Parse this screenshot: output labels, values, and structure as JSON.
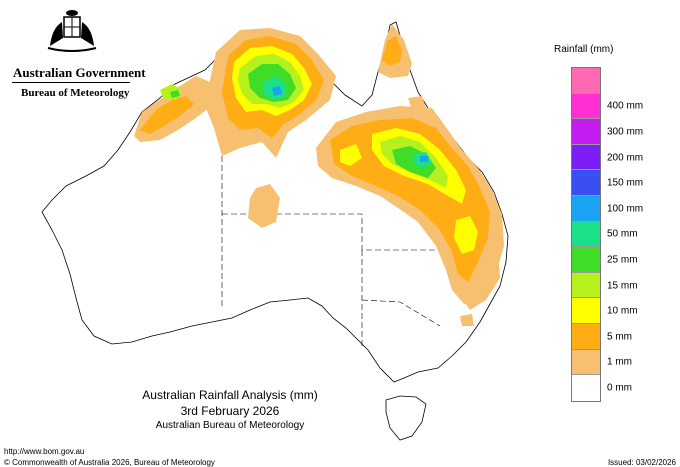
{
  "header": {
    "government": "Australian Government",
    "bureau": "Bureau of Meteorology"
  },
  "legend": {
    "title": "Rainfall (mm)",
    "items": [
      {
        "label": "",
        "color": "#ff69b4"
      },
      {
        "label": "400 mm",
        "color": "#ff2fd4"
      },
      {
        "label": "300 mm",
        "color": "#c21cf0"
      },
      {
        "label": "200 mm",
        "color": "#7b1ff6"
      },
      {
        "label": "150 mm",
        "color": "#3a4ff2"
      },
      {
        "label": "100 mm",
        "color": "#1aa3f2"
      },
      {
        "label": "50 mm",
        "color": "#1ae08a"
      },
      {
        "label": "25 mm",
        "color": "#3fdc28"
      },
      {
        "label": "15 mm",
        "color": "#b6f01d"
      },
      {
        "label": "10 mm",
        "color": "#ffff00"
      },
      {
        "label": "5 mm",
        "color": "#ffad14"
      },
      {
        "label": "1 mm",
        "color": "#f7c071"
      },
      {
        "label": "0 mm",
        "color": "#ffffff"
      }
    ]
  },
  "title": {
    "line1": "Australian Rainfall Analysis (mm)",
    "line2": "3rd February 2026",
    "line3": "Australian Bureau of Meteorology"
  },
  "footer": {
    "url": "http://www.bom.gov.au",
    "copyright": "© Commonwealth of Australia 2026, Bureau of Meteorology",
    "issued": "Issued: 03/02/2026"
  }
}
